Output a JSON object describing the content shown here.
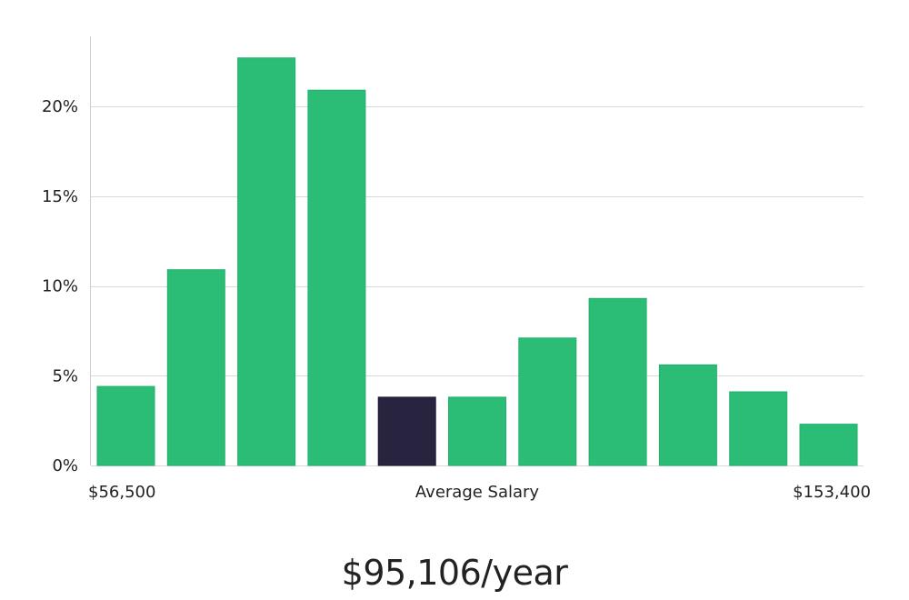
{
  "chart_data": {
    "type": "bar",
    "title": "",
    "xlabel": "Average Salary",
    "ylabel": "",
    "x_range_labels": {
      "min": "$56,500",
      "max": "$153,400"
    },
    "ylim": [
      0,
      24
    ],
    "yticks": [
      0,
      5,
      10,
      15,
      20
    ],
    "ytick_labels": [
      "0%",
      "5%",
      "10%",
      "15%",
      "20%"
    ],
    "values": [
      4.4,
      10.9,
      22.7,
      20.9,
      3.8,
      3.8,
      7.1,
      9.3,
      5.6,
      4.1,
      2.3
    ],
    "highlight_index": 4,
    "colors": {
      "bar": "#2bbd76",
      "highlight": "#28243f",
      "grid": "#d9d9d9",
      "axis": "#cfcfcf"
    }
  },
  "summary": {
    "salary_text": "$95,106/year"
  }
}
